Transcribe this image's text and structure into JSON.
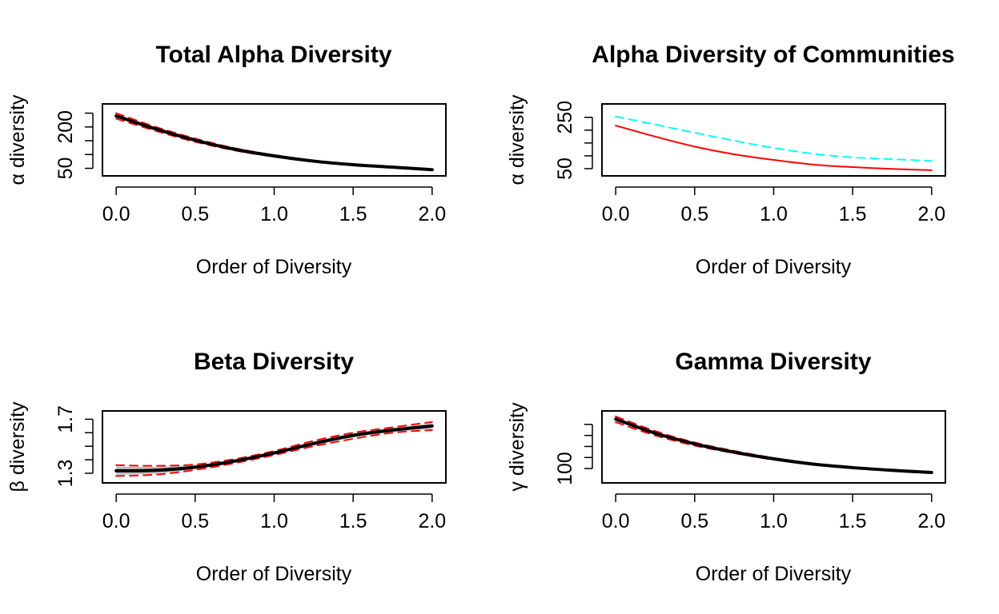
{
  "chart_data": [
    {
      "type": "line",
      "title": "Total Alpha Diversity",
      "xlabel": "Order of Diversity",
      "ylabel": "α diversity",
      "xlim": [
        0,
        2
      ],
      "ylim": [
        33,
        273
      ],
      "xticks": [
        0,
        0.5,
        1,
        1.5,
        2
      ],
      "x_tick_labels": [
        "0.0",
        "0.5",
        "1.0",
        "1.5",
        "2.0"
      ],
      "yticks": [
        50,
        100,
        150,
        200,
        250
      ],
      "y_tick_labels": [
        "50",
        "",
        "",
        "200",
        ""
      ],
      "x": [
        0,
        0.25,
        0.5,
        0.75,
        1,
        1.25,
        1.5,
        1.75,
        2
      ],
      "series": [
        {
          "values": [
            240,
            193,
            152,
            119,
            95,
            76,
            63,
            54,
            45
          ],
          "color": "#000000",
          "style": "solid",
          "width": 4
        },
        {
          "values": [
            250,
            200,
            158,
            123,
            98,
            78,
            65,
            55,
            46
          ],
          "color": "#ff0000",
          "style": "dashed",
          "width": 2
        },
        {
          "values": [
            230,
            186,
            146,
            115,
            92,
            74,
            61,
            53,
            44
          ],
          "color": "#ff0000",
          "style": "dashed",
          "width": 2
        }
      ],
      "band": {
        "upper": [
          246,
          197,
          155,
          121,
          96,
          77,
          64,
          54,
          45
        ],
        "lower": [
          234,
          189,
          149,
          117,
          94,
          75,
          62,
          54,
          45
        ],
        "color": "#bebebe"
      },
      "grid": false
    },
    {
      "type": "line",
      "title": "Alpha Diversity of Communities",
      "xlabel": "Order of Diversity",
      "ylabel": "α diversity",
      "xlim": [
        0,
        2
      ],
      "ylim": [
        33,
        291
      ],
      "xticks": [
        0,
        0.5,
        1,
        1.5,
        2
      ],
      "x_tick_labels": [
        "0.0",
        "0.5",
        "1.0",
        "1.5",
        "2.0"
      ],
      "yticks": [
        50,
        100,
        150,
        200,
        250
      ],
      "y_tick_labels": [
        "50",
        "",
        "",
        "",
        "250"
      ],
      "x": [
        0,
        0.25,
        0.5,
        0.75,
        1,
        1.25,
        1.5,
        1.75,
        2
      ],
      "series": [
        {
          "values": [
            253,
            222,
            190,
            159,
            131,
            108,
            94,
            87,
            80
          ],
          "color": "#00ffff",
          "style": "dashed",
          "width": 2
        },
        {
          "values": [
            218,
            175,
            136,
            106,
            84,
            66,
            56,
            49,
            44
          ],
          "color": "#ff0000",
          "style": "solid",
          "width": 2
        }
      ],
      "grid": false
    },
    {
      "type": "line",
      "title": "Beta Diversity",
      "xlabel": "Order of Diversity",
      "ylabel": "β diversity",
      "xlim": [
        0,
        2
      ],
      "ylim": [
        1.25,
        1.74
      ],
      "xticks": [
        0,
        0.5,
        1,
        1.5,
        2
      ],
      "x_tick_labels": [
        "0.0",
        "0.5",
        "1.0",
        "1.5",
        "2.0"
      ],
      "yticks": [
        1.3,
        1.4,
        1.5,
        1.6,
        1.7
      ],
      "y_tick_labels": [
        "1.3",
        "",
        "",
        "",
        "1.7"
      ],
      "x": [
        0,
        0.25,
        0.5,
        0.75,
        1,
        1.25,
        1.5,
        1.75,
        2
      ],
      "series": [
        {
          "values": [
            1.318,
            1.322,
            1.345,
            1.39,
            1.45,
            1.52,
            1.58,
            1.62,
            1.65
          ],
          "color": "#000000",
          "style": "solid",
          "width": 4
        },
        {
          "values": [
            1.36,
            1.355,
            1.365,
            1.405,
            1.465,
            1.54,
            1.6,
            1.64,
            1.68
          ],
          "color": "#ff0000",
          "style": "dashed",
          "width": 2
        },
        {
          "values": [
            1.28,
            1.29,
            1.325,
            1.375,
            1.435,
            1.5,
            1.555,
            1.6,
            1.62
          ],
          "color": "#ff0000",
          "style": "dashed",
          "width": 2
        }
      ],
      "band": {
        "upper": [
          1.35,
          1.348,
          1.36,
          1.4,
          1.46,
          1.535,
          1.595,
          1.635,
          1.67
        ],
        "lower": [
          1.29,
          1.297,
          1.33,
          1.38,
          1.44,
          1.505,
          1.565,
          1.605,
          1.63
        ],
        "color": "#bebebe"
      },
      "grid": false
    },
    {
      "type": "line",
      "title": "Gamma Diversity",
      "xlabel": "Order of Diversity",
      "ylabel": "γ diversity",
      "xlim": [
        0,
        2
      ],
      "ylim": [
        74,
        224
      ],
      "xticks": [
        0,
        0.5,
        1,
        1.5,
        2
      ],
      "x_tick_labels": [
        "0.0",
        "0.5",
        "1.0",
        "1.5",
        "2.0"
      ],
      "yticks": [
        100,
        125,
        150,
        175,
        200
      ],
      "y_tick_labels": [
        "100",
        "",
        "",
        "",
        ""
      ],
      "x": [
        0,
        0.25,
        0.5,
        0.75,
        1,
        1.25,
        1.5,
        1.75,
        2
      ],
      "series": [
        {
          "values": [
            212,
            180,
            156,
            137,
            122,
            110,
            102,
            96,
            91
          ],
          "color": "#000000",
          "style": "solid",
          "width": 4
        },
        {
          "values": [
            218,
            185,
            159,
            140,
            124,
            111,
            103,
            97,
            92
          ],
          "color": "#ff0000",
          "style": "dashed",
          "width": 2
        },
        {
          "values": [
            205,
            175,
            152,
            135,
            120,
            109,
            101,
            95,
            90
          ],
          "color": "#ff0000",
          "style": "dashed",
          "width": 2
        }
      ],
      "band": {
        "upper": [
          216,
          183,
          158,
          139,
          123,
          111,
          103,
          97,
          92
        ],
        "lower": [
          208,
          177,
          154,
          136,
          121,
          109,
          101,
          95,
          90
        ],
        "color": "#bebebe"
      },
      "grid": false
    }
  ]
}
